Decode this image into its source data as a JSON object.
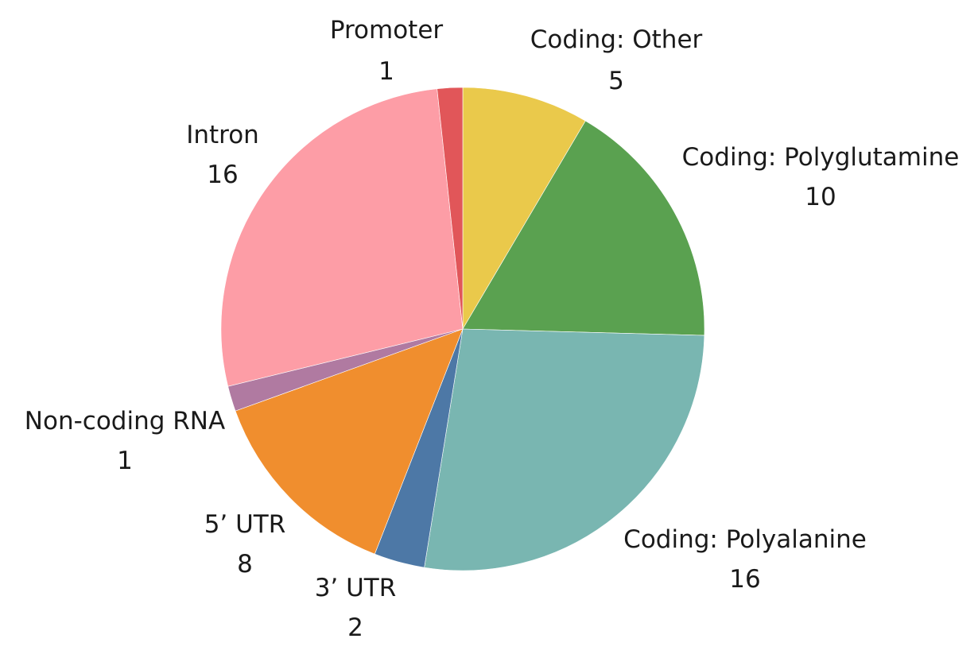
{
  "chart_data": {
    "type": "pie",
    "title": "",
    "slices": [
      {
        "label": "Coding: Other",
        "value": 5,
        "color": "#eac94b"
      },
      {
        "label": "Coding: Polyglutamine",
        "value": 10,
        "color": "#5aa150"
      },
      {
        "label": "Coding: Polyalanine",
        "value": 16,
        "color": "#79b6b1"
      },
      {
        "label": "3’ UTR",
        "value": 2,
        "color": "#4d78a6"
      },
      {
        "label": "5’ UTR",
        "value": 8,
        "color": "#f08e2e"
      },
      {
        "label": "Non-coding RNA",
        "value": 1,
        "color": "#b07aa1"
      },
      {
        "label": "Intron",
        "value": 16,
        "color": "#fd9da6"
      },
      {
        "label": "Promoter",
        "value": 1,
        "color": "#e15659"
      }
    ]
  }
}
